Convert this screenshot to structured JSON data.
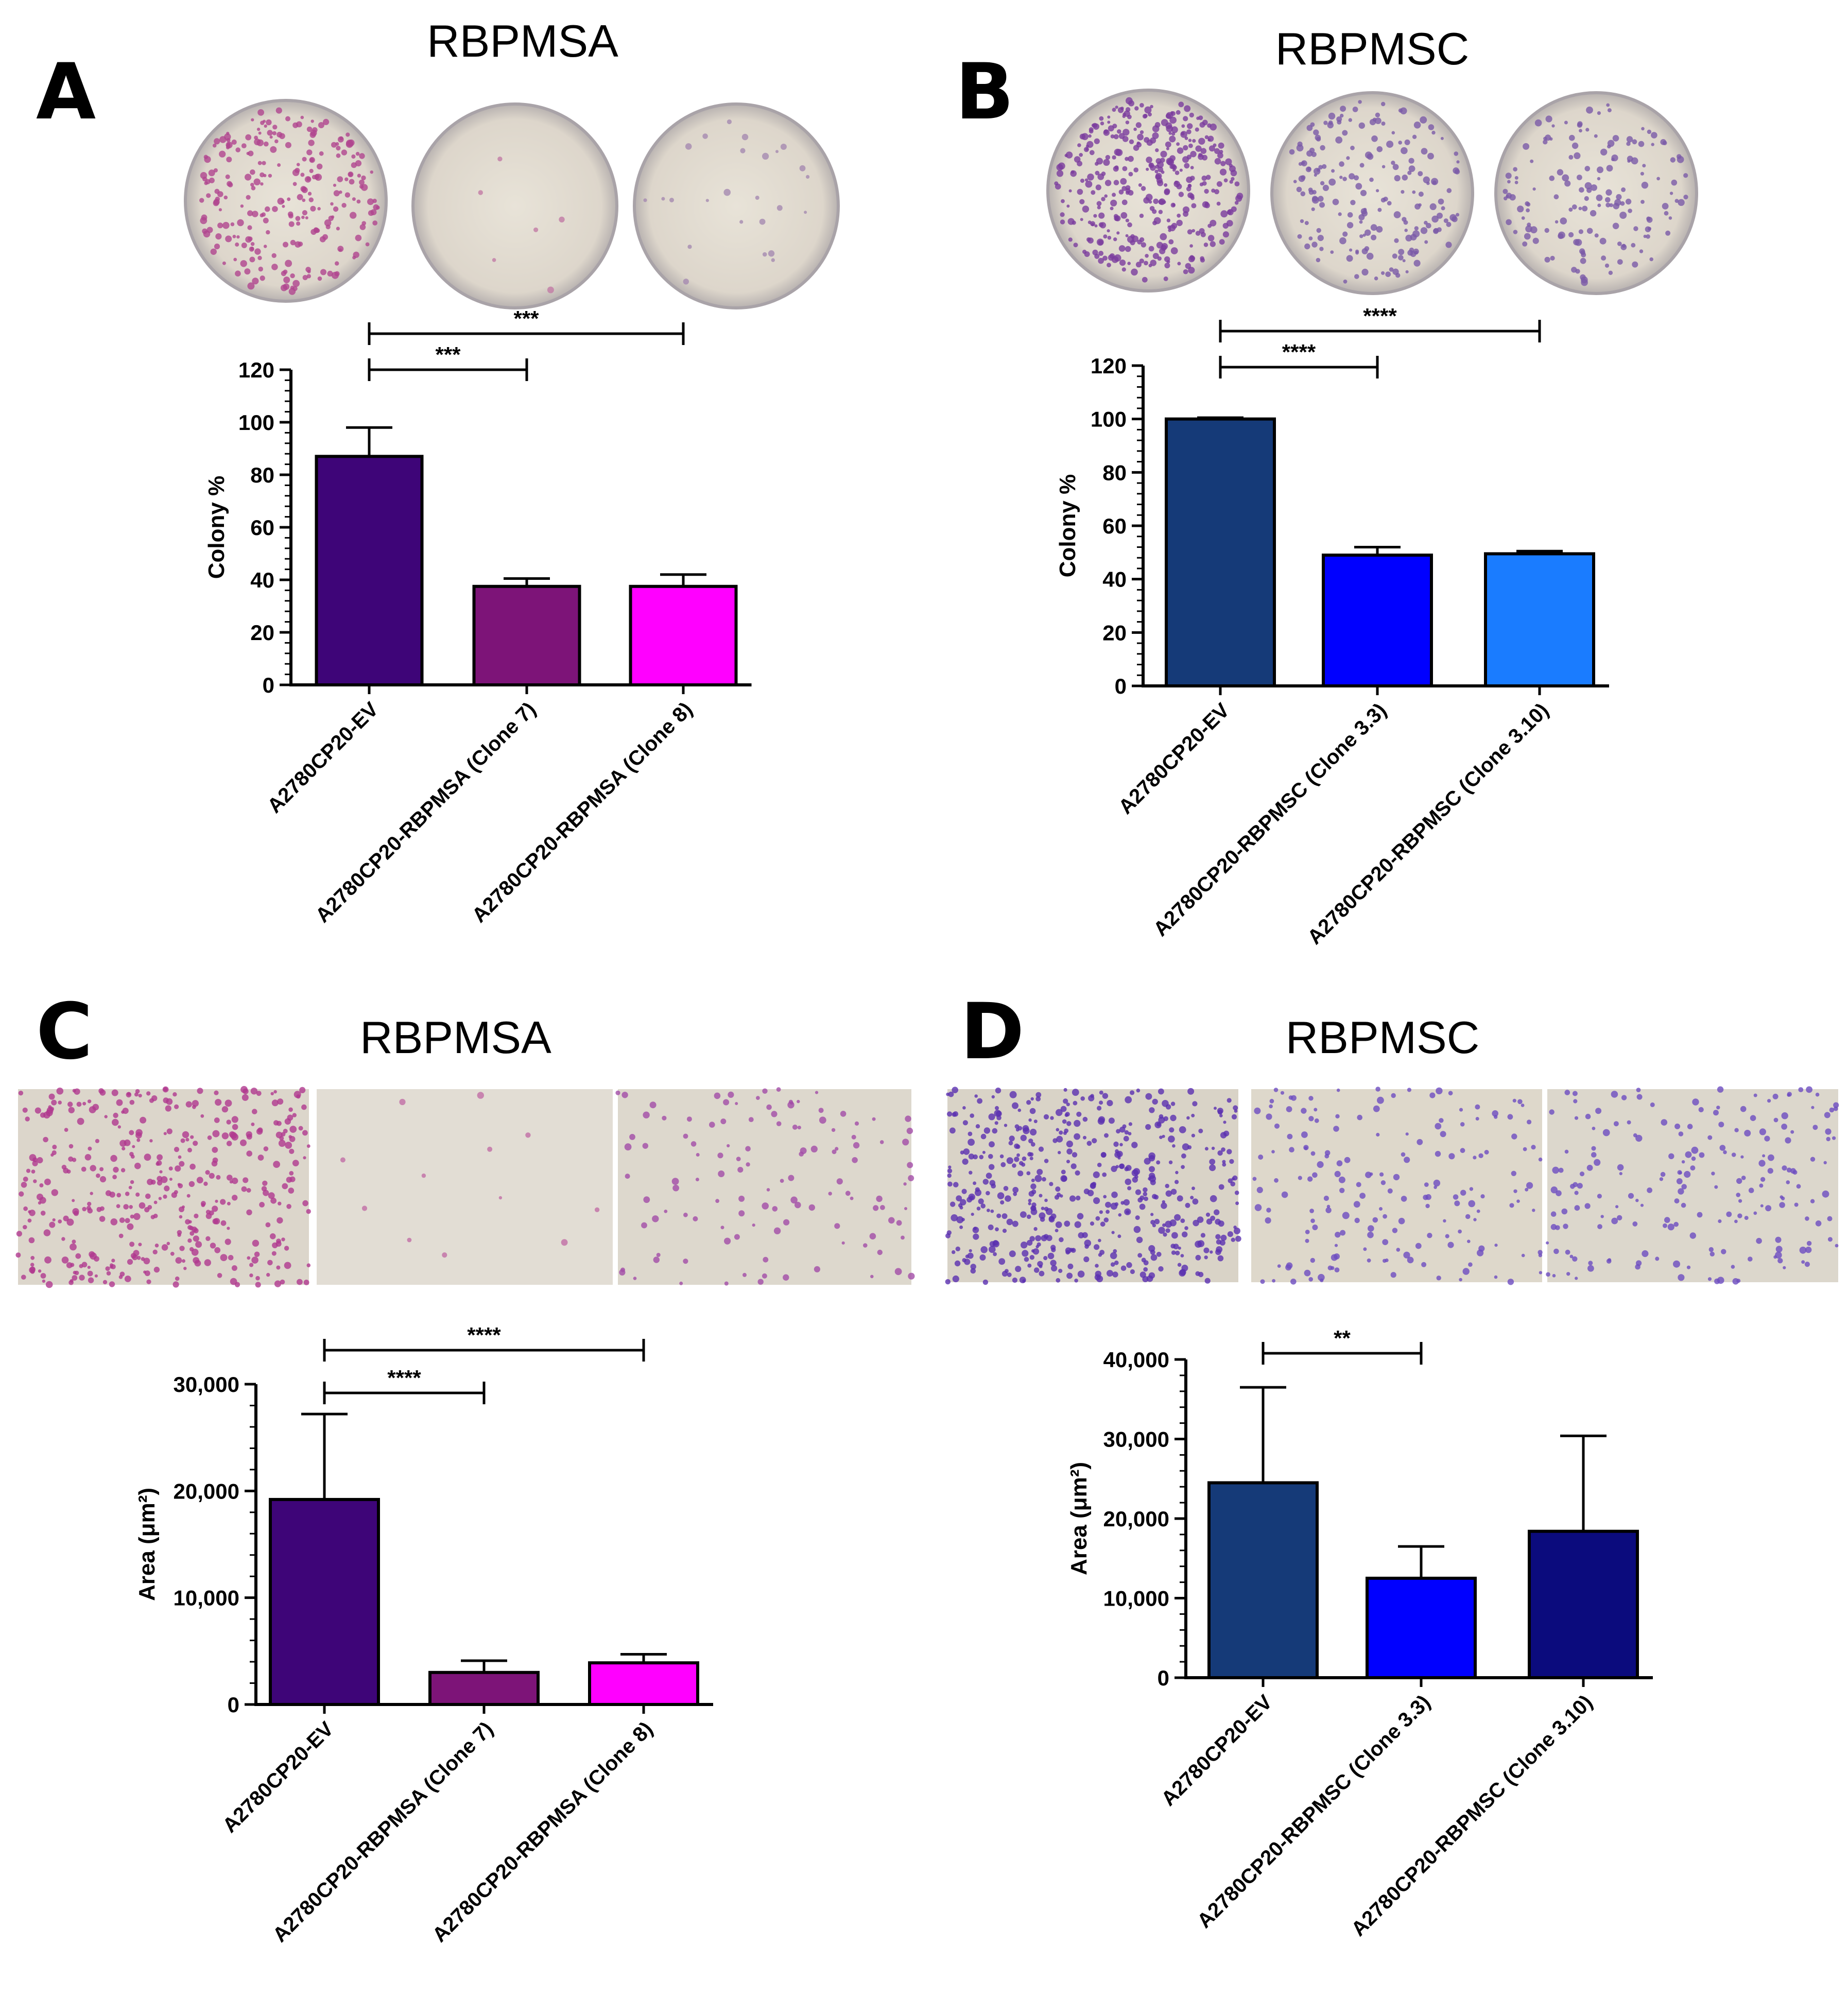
{
  "figure": {
    "panels": [
      {
        "letter": "A",
        "title": "RBPMSA",
        "photo_style": "dish"
      },
      {
        "letter": "B",
        "title": "RBPMSC",
        "photo_style": "dish"
      },
      {
        "letter": "C",
        "title": "RBPMSA",
        "photo_style": "field"
      },
      {
        "letter": "D",
        "title": "RBPMSC",
        "photo_style": "field"
      }
    ]
  },
  "chart_data": [
    {
      "panel": "A",
      "type": "bar",
      "title": "RBPMSA",
      "ylabel": "Colony %",
      "xlabel": "",
      "ylim": [
        0,
        120
      ],
      "yticks": [
        0,
        20,
        40,
        60,
        80,
        100,
        120
      ],
      "ytick_labels": [
        "0",
        "20",
        "40",
        "60",
        "80",
        "100",
        "120"
      ],
      "grid": false,
      "categories": [
        "A2780CP20-EV",
        "A2780CP20-RBPMSA (Clone 7)",
        "A2780CP20-RBPMSA (Clone 8)"
      ],
      "values": [
        87,
        37.5,
        37.5
      ],
      "errors": [
        11,
        3,
        4.5
      ],
      "colors": [
        "#3e0578",
        "#7d1478",
        "#ff00ff"
      ],
      "significance": [
        {
          "from": 0,
          "to": 1,
          "label": "***"
        },
        {
          "from": 0,
          "to": 2,
          "label": "***"
        }
      ]
    },
    {
      "panel": "B",
      "type": "bar",
      "title": "RBPMSC",
      "ylabel": "Colony %",
      "xlabel": "",
      "ylim": [
        0,
        120
      ],
      "yticks": [
        0,
        20,
        40,
        60,
        80,
        100,
        120
      ],
      "ytick_labels": [
        "0",
        "20",
        "40",
        "60",
        "80",
        "100",
        "120"
      ],
      "grid": false,
      "categories": [
        "A2780CP20-EV",
        "A2780CP20-RBPMSC (Clone 3.3)",
        "A2780CP20-RBPMSC (Clone 3.10)"
      ],
      "values": [
        100,
        49,
        49.5
      ],
      "errors": [
        0.5,
        3,
        1
      ],
      "colors": [
        "#153a78",
        "#0000ff",
        "#1a7cff"
      ],
      "significance": [
        {
          "from": 0,
          "to": 1,
          "label": "****"
        },
        {
          "from": 0,
          "to": 2,
          "label": "****"
        }
      ]
    },
    {
      "panel": "C",
      "type": "bar",
      "title": "RBPMSA",
      "ylabel": "Area (μm²)",
      "xlabel": "",
      "ylim": [
        0,
        30000
      ],
      "yticks": [
        0,
        10000,
        20000,
        30000
      ],
      "ytick_labels": [
        "0",
        "10,000",
        "20,000",
        "30,000"
      ],
      "grid": false,
      "categories": [
        "A2780CP20-EV",
        "A2780CP20-RBPMSA (Clone 7)",
        "A2780CP20-RBPMSA (Clone 8)"
      ],
      "values": [
        19200,
        3000,
        3900
      ],
      "errors": [
        8000,
        1100,
        800
      ],
      "colors": [
        "#3e0578",
        "#7d1478",
        "#ff00ff"
      ],
      "significance": [
        {
          "from": 0,
          "to": 1,
          "label": "****"
        },
        {
          "from": 0,
          "to": 2,
          "label": "****"
        }
      ]
    },
    {
      "panel": "D",
      "type": "bar",
      "title": "RBPMSC",
      "ylabel": "Area (μm²)",
      "xlabel": "",
      "ylim": [
        0,
        40000
      ],
      "yticks": [
        0,
        10000,
        20000,
        30000,
        40000
      ],
      "ytick_labels": [
        "0",
        "10,000",
        "20,000",
        "30,000",
        "40,000"
      ],
      "grid": false,
      "categories": [
        "A2780CP20-EV",
        "A2780CP20-RBPMSC (Clone 3.3)",
        "A2780CP20-RBPMSC (Clone 3.10)"
      ],
      "values": [
        24500,
        12500,
        18400
      ],
      "errors": [
        12000,
        4000,
        12000
      ],
      "colors": [
        "#153a78",
        "#0000ff",
        "#0b0b7d"
      ],
      "significance": [
        {
          "from": 0,
          "to": 1,
          "label": "**"
        }
      ]
    }
  ]
}
